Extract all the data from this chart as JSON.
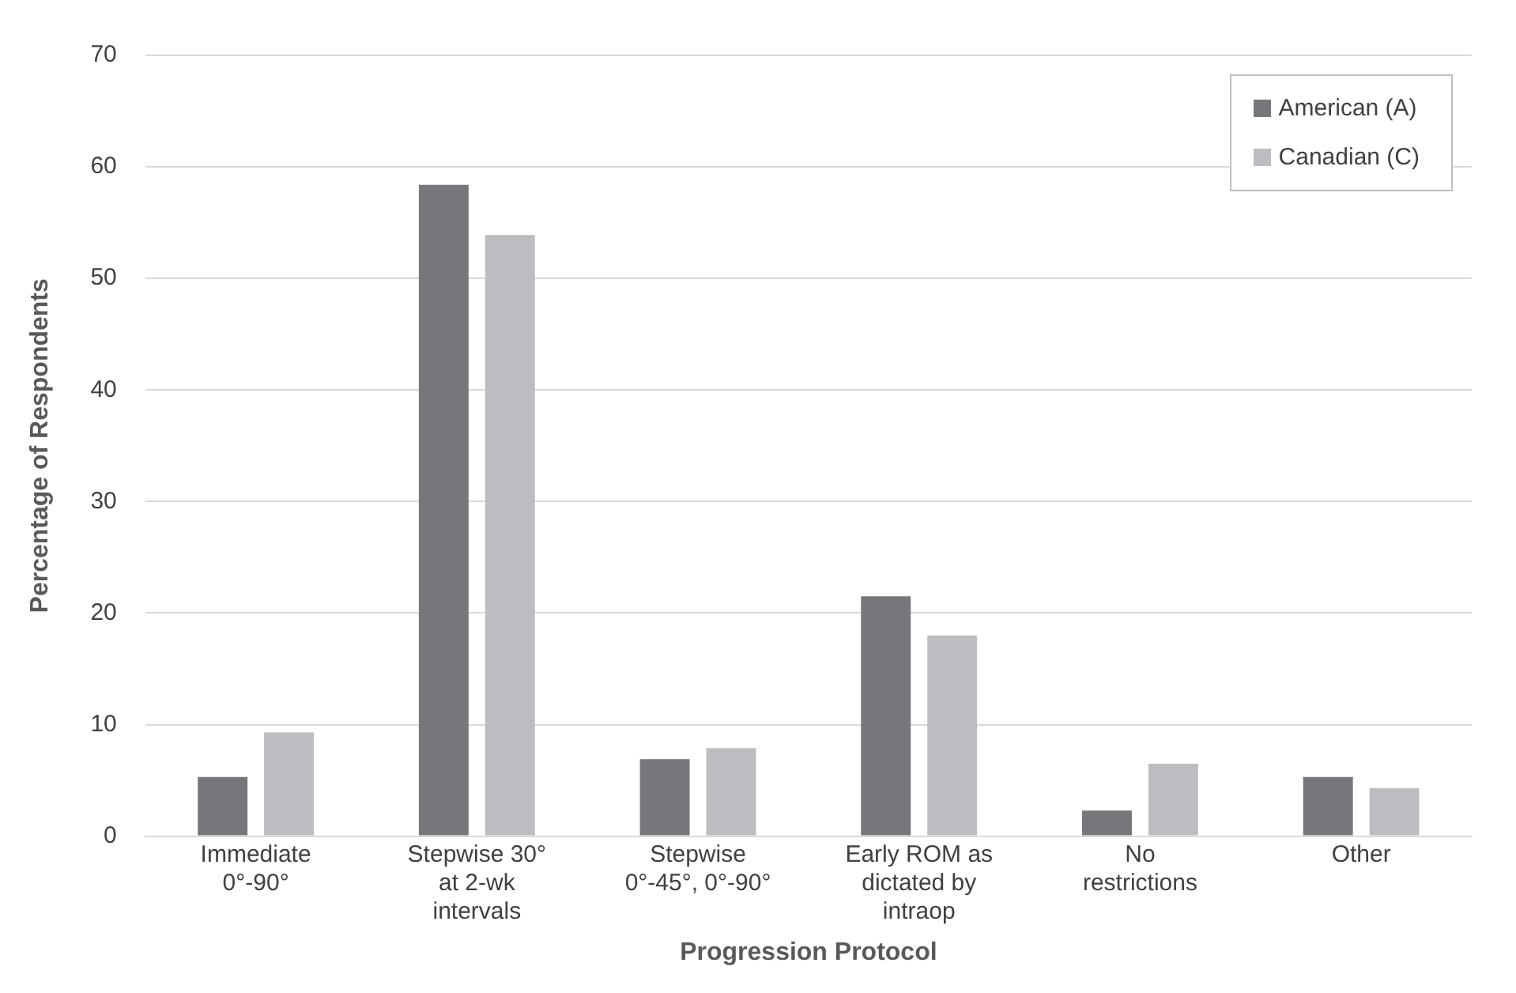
{
  "chart_data": {
    "type": "bar",
    "xlabel": "Progression Protocol",
    "ylabel": "Percentage of Respondents",
    "categories": [
      "Immediate 0°-90°",
      "Stepwise 30° at 2-wk intervals",
      "Stepwise 0°-45°, 0°-90°",
      "Early ROM as dictated by intraop",
      "No restrictions",
      "Other"
    ],
    "series": [
      {
        "name": "American (A)",
        "color": "#77777b",
        "values": [
          5.3,
          58.4,
          6.9,
          21.5,
          2.3,
          5.3
        ]
      },
      {
        "name": "Canadian (C)",
        "color": "#bcbdc0",
        "values": [
          9.3,
          53.9,
          7.9,
          18.0,
          6.5,
          4.3
        ]
      }
    ],
    "ylim": [
      0,
      70
    ],
    "yticks": [
      0,
      10,
      20,
      30,
      40,
      50,
      60,
      70
    ],
    "grid": "y",
    "legend": "top right"
  }
}
